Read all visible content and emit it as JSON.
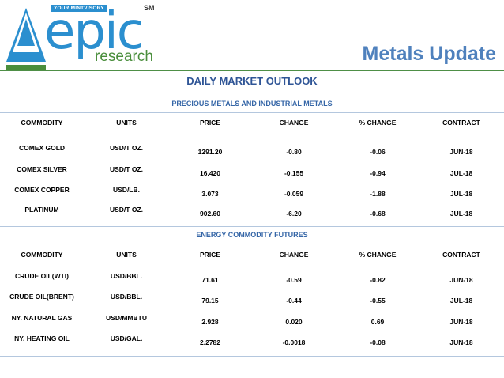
{
  "logo": {
    "tagline": "YOUR MINTVISORY",
    "sm": "SM",
    "word": "epic",
    "sub": "research"
  },
  "page_title": "Metals Update",
  "outlook_title": "DAILY MARKET OUTLOOK",
  "precious": {
    "title": "PRECIOUS METALS AND INDUSTRIAL METALS",
    "headers": [
      "COMMODITY",
      "UNITS",
      "PRICE",
      "CHANGE",
      "% CHANGE",
      "CONTRACT"
    ],
    "rows": [
      [
        "COMEX GOLD",
        "USD/T OZ.",
        "1291.20",
        "-0.80",
        "-0.06",
        "JUN-18"
      ],
      [
        "COMEX SILVER",
        "USD/T OZ.",
        "16.420",
        "-0.155",
        "-0.94",
        "JUL-18"
      ],
      [
        "COMEX COPPER",
        "USD/LB.",
        "3.073",
        "-0.059",
        "-1.88",
        "JUL-18"
      ],
      [
        "PLATINUM",
        "USD/T OZ.",
        "902.60",
        "-6.20",
        "-0.68",
        "JUL-18"
      ]
    ]
  },
  "energy": {
    "title": "ENERGY COMMODITY FUTURES",
    "headers": [
      "COMMODITY",
      "UNITS",
      "PRICE",
      "CHANGE",
      "% CHANGE",
      "CONTRACT"
    ],
    "rows": [
      [
        "CRUDE OIL(WTI)",
        "USD/BBL.",
        "71.61",
        "-0.59",
        "-0.82",
        "JUN-18"
      ],
      [
        "CRUDE OIL(BRENT)",
        "USD/BBL.",
        "79.15",
        "-0.44",
        "-0.55",
        "JUL-18"
      ],
      [
        "NY. NATURAL GAS",
        "USD/MMBTU",
        "2.928",
        "0.020",
        "0.69",
        "JUN-18"
      ],
      [
        "NY. HEATING OIL",
        "USD/GAL.",
        "2.2782",
        "-0.0018",
        "-0.08",
        "JUN-18"
      ]
    ]
  },
  "colors": {
    "brand_blue": "#2b8fcf",
    "brand_green": "#4a8e3c",
    "title_blue": "#4f81bd",
    "section_blue": "#3566a7"
  }
}
